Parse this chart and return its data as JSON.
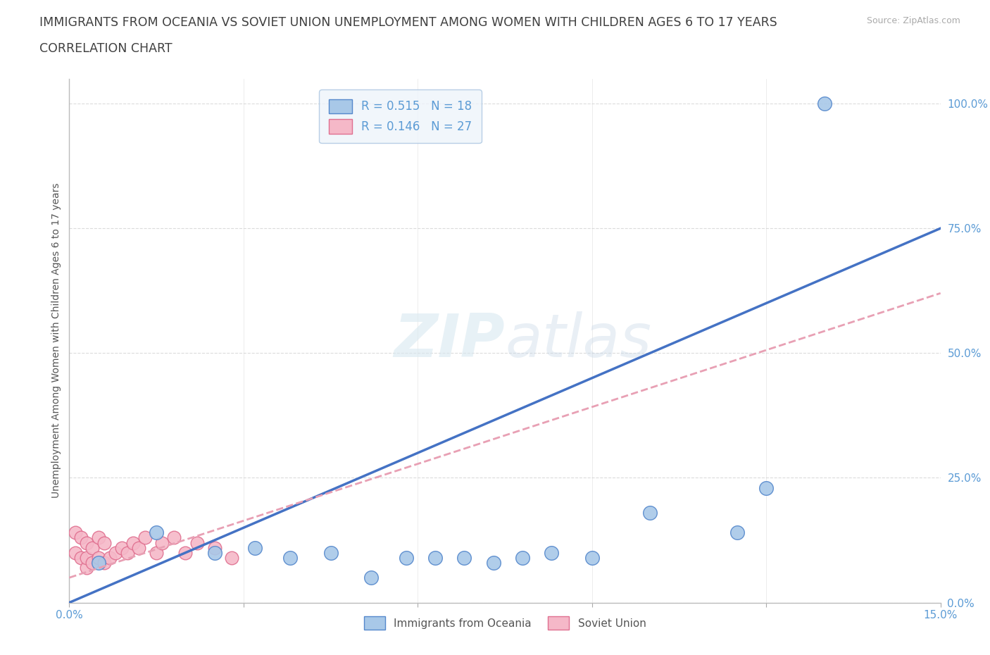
{
  "title_line1": "IMMIGRANTS FROM OCEANIA VS SOVIET UNION UNEMPLOYMENT AMONG WOMEN WITH CHILDREN AGES 6 TO 17 YEARS",
  "title_line2": "CORRELATION CHART",
  "source": "Source: ZipAtlas.com",
  "ylabel": "Unemployment Among Women with Children Ages 6 to 17 years",
  "xlim": [
    0.0,
    0.15
  ],
  "ylim": [
    0.0,
    1.05
  ],
  "xtick_positions": [
    0.0,
    0.03,
    0.06,
    0.09,
    0.12,
    0.15
  ],
  "xticklabels": [
    "0.0%",
    "",
    "",
    "",
    "",
    "15.0%"
  ],
  "ytick_positions": [
    0.0,
    0.25,
    0.5,
    0.75,
    1.0
  ],
  "ytick_labels": [
    "0.0%",
    "25.0%",
    "50.0%",
    "75.0%",
    "100.0%"
  ],
  "oceania_color": "#a8c8e8",
  "soviet_color": "#f5b8c8",
  "oceania_edge": "#5588cc",
  "soviet_edge": "#e07090",
  "line_oceania_color": "#4472c4",
  "line_soviet_color": "#e8a0b4",
  "grid_color": "#cccccc",
  "text_color": "#5b9bd5",
  "title_color": "#404040",
  "R_oceania": 0.515,
  "N_oceania": 18,
  "R_soviet": 0.146,
  "N_soviet": 27,
  "oceania_line_x": [
    0.0,
    0.15
  ],
  "oceania_line_y": [
    0.0,
    0.75
  ],
  "soviet_line_x": [
    0.0,
    0.15
  ],
  "soviet_line_y": [
    0.05,
    0.62
  ],
  "oceania_x": [
    0.005,
    0.015,
    0.025,
    0.032,
    0.038,
    0.045,
    0.052,
    0.058,
    0.063,
    0.068,
    0.073,
    0.078,
    0.083,
    0.09,
    0.1,
    0.115,
    0.12,
    0.13
  ],
  "oceania_y": [
    0.08,
    0.14,
    0.1,
    0.11,
    0.09,
    0.1,
    0.05,
    0.09,
    0.09,
    0.09,
    0.08,
    0.09,
    0.1,
    0.09,
    0.18,
    0.14,
    0.23,
    1.0
  ],
  "soviet_x": [
    0.001,
    0.001,
    0.002,
    0.002,
    0.003,
    0.003,
    0.003,
    0.004,
    0.004,
    0.005,
    0.005,
    0.006,
    0.006,
    0.007,
    0.008,
    0.009,
    0.01,
    0.011,
    0.012,
    0.013,
    0.015,
    0.016,
    0.018,
    0.02,
    0.022,
    0.025,
    0.028
  ],
  "soviet_y": [
    0.1,
    0.14,
    0.09,
    0.13,
    0.07,
    0.09,
    0.12,
    0.08,
    0.11,
    0.09,
    0.13,
    0.08,
    0.12,
    0.09,
    0.1,
    0.11,
    0.1,
    0.12,
    0.11,
    0.13,
    0.1,
    0.12,
    0.13,
    0.1,
    0.12,
    0.11,
    0.09
  ],
  "background_color": "#ffffff",
  "watermark_zip": "ZIP",
  "watermark_atlas": "atlas",
  "legend_box_color": "#eef4fb",
  "legend_box_edge": "#a8c4e0"
}
